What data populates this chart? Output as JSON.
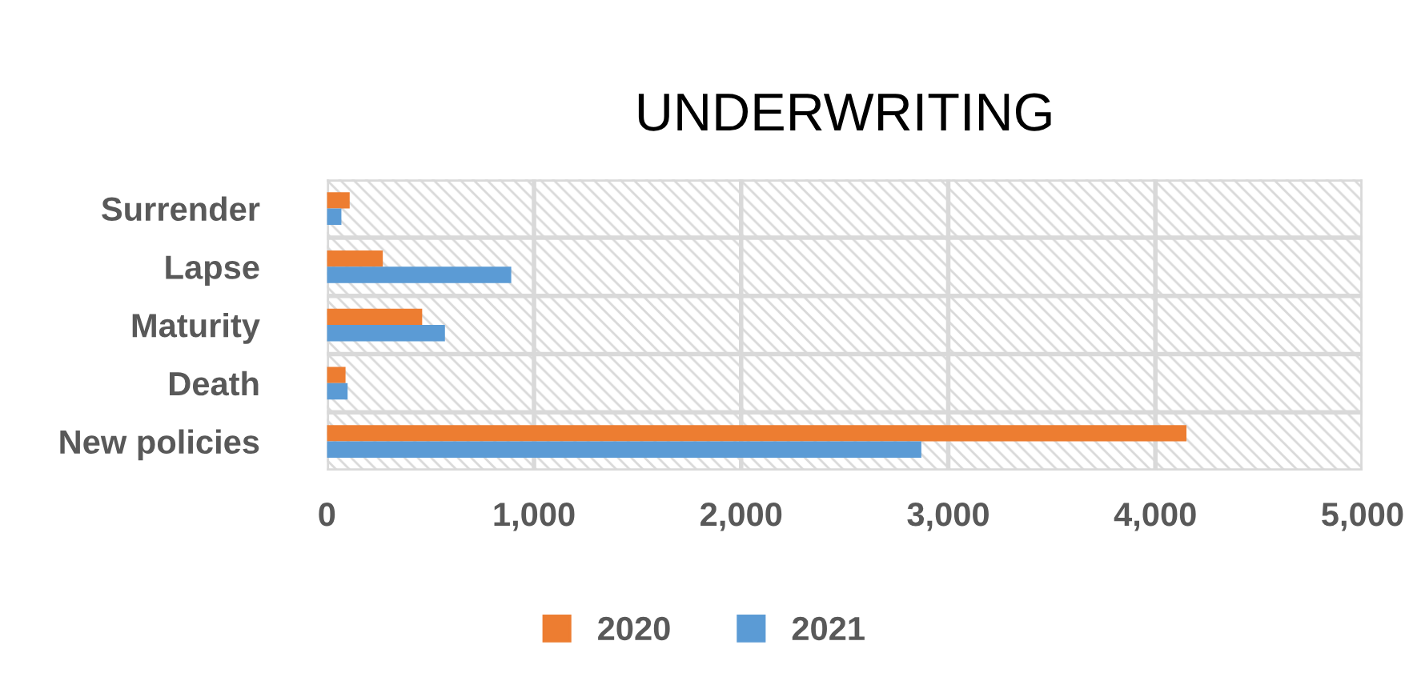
{
  "chart_data": {
    "type": "bar",
    "orientation": "horizontal",
    "title": "UNDERWRITING",
    "categories": [
      "Surrender",
      "Lapse",
      "Maturity",
      "Death",
      "New policies"
    ],
    "series": [
      {
        "name": "2020",
        "color": "#ed7d31",
        "values": [
          110,
          270,
          460,
          90,
          4150
        ]
      },
      {
        "name": "2021",
        "color": "#5b9bd5",
        "values": [
          70,
          890,
          570,
          100,
          2870
        ]
      }
    ],
    "xlim": [
      0,
      5000
    ],
    "xticks": [
      {
        "value": 0,
        "label": "0"
      },
      {
        "value": 1000,
        "label": "1,000"
      },
      {
        "value": 2000,
        "label": "2,000"
      },
      {
        "value": 3000,
        "label": "3,000"
      },
      {
        "value": 4000,
        "label": "4,000"
      },
      {
        "value": 5000,
        "label": "5,000"
      }
    ],
    "grid": true,
    "legend": "bottom"
  }
}
